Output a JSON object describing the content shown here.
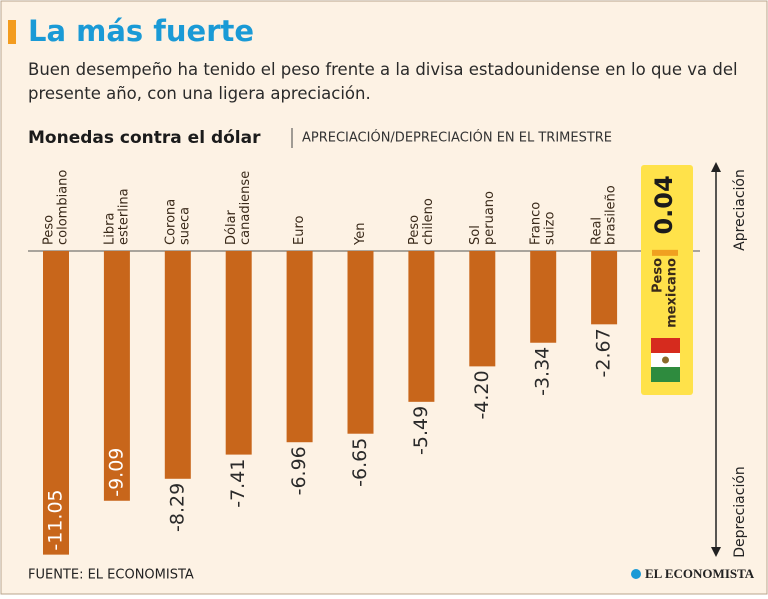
{
  "chart_data": {
    "type": "bar",
    "title": "La más fuerte",
    "subtitle": "Buen desempeño ha tenido el peso frente a la divisa estadounidense en lo que va del presente año, con una ligera apreciación.",
    "chart_title": "Monedas contra el dólar",
    "chart_subtitle": "APRECIACIÓN/DEPRECIACIÓN EN EL TRIMESTRE",
    "axis_top_label": "Apreciación",
    "axis_bottom_label": "Depreciación",
    "categories": [
      [
        "Peso",
        "colombiano"
      ],
      [
        "Libra",
        "esterlina"
      ],
      [
        "Corona",
        "sueca"
      ],
      [
        "Dólar",
        "canadiense"
      ],
      [
        "Euro"
      ],
      [
        "Yen"
      ],
      [
        "Peso",
        "chileno"
      ],
      [
        "Sol",
        "peruano"
      ],
      [
        "Franco",
        "suizo"
      ],
      [
        "Real",
        "brasileño"
      ],
      [
        "Peso",
        "mexicano"
      ]
    ],
    "values": [
      -11.05,
      -9.09,
      -8.29,
      -7.41,
      -6.96,
      -6.65,
      -5.49,
      -4.2,
      -3.34,
      -2.67,
      0.04
    ],
    "value_labels": [
      "-11.05",
      "-9.09",
      "-8.29",
      "-7.41",
      "-6.96",
      "-6.65",
      "-5.49",
      "-4.20",
      "-3.34",
      "-2.67",
      "0.04"
    ],
    "colors": {
      "negative": "#c8661b",
      "positive": "#f0a020"
    },
    "ylim": [
      -11.5,
      3
    ],
    "source": "FUENTE: EL ECONOMISTA",
    "logo": "EL ECONOMISTA"
  }
}
